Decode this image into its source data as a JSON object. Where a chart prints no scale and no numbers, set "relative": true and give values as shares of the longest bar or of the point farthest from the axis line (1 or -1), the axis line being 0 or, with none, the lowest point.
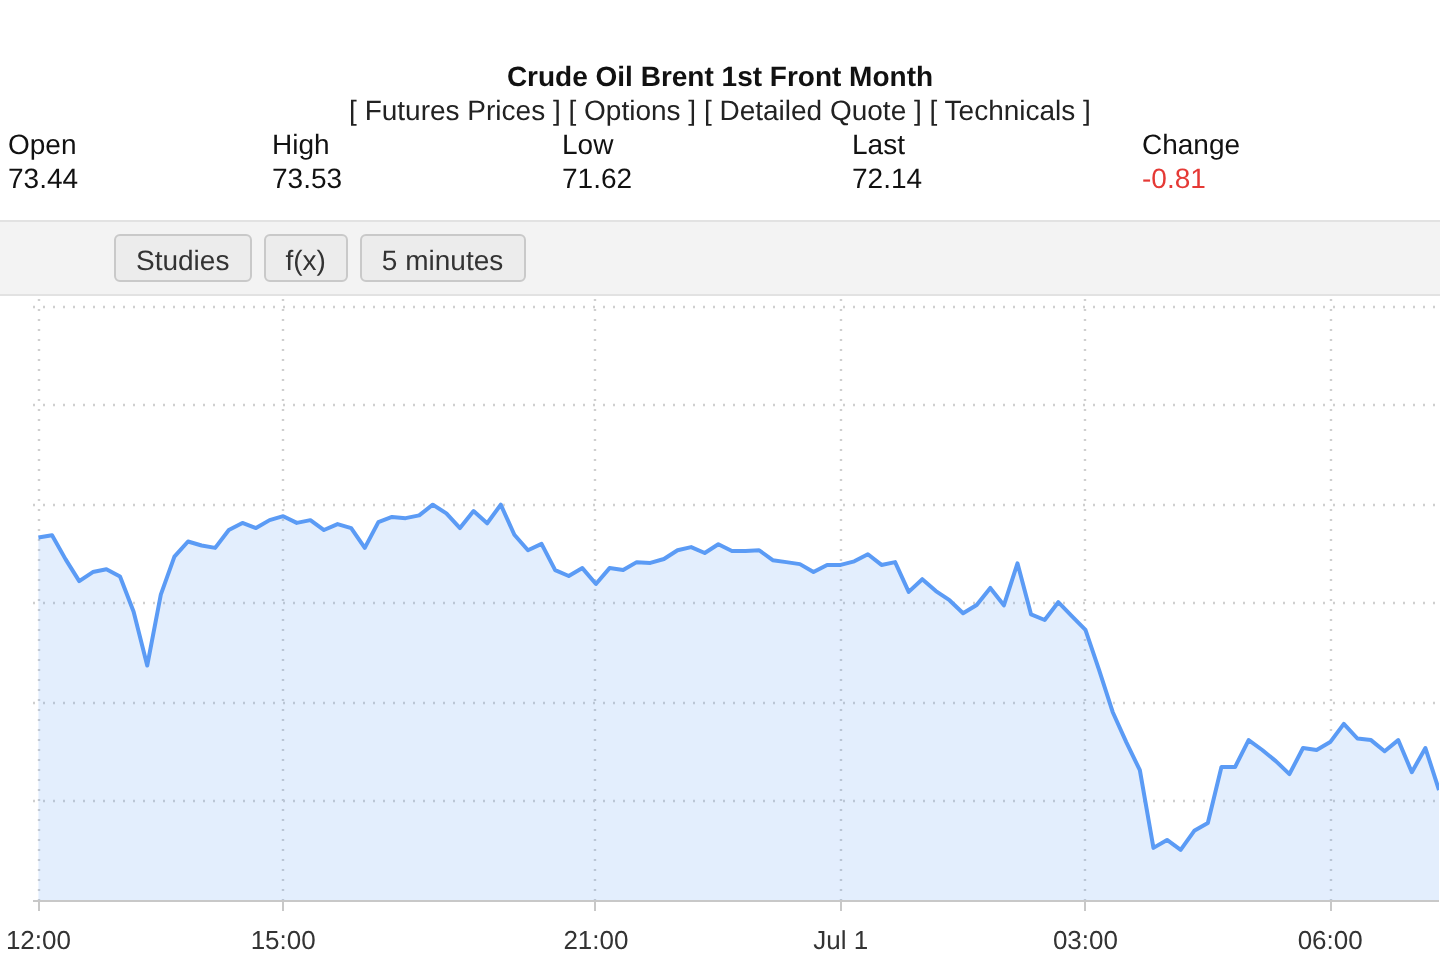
{
  "chart_data": {
    "type": "area",
    "title": "Crude Oil Brent 1st Front Month",
    "subtitle": "[ Futures Prices ] [ Options ] [ Detailed Quote ] [ Technicals ]",
    "annotations": [
      "Open",
      "73.44",
      "High",
      "73.53",
      "Low",
      "71.62",
      "Last",
      "72.14",
      "Change",
      "-0.81",
      "Studies",
      "f(x)",
      "5 minutes"
    ],
    "categories": [
      "12:00",
      null,
      null,
      null,
      null,
      null,
      null,
      null,
      null,
      null,
      null,
      null,
      null,
      null,
      null,
      null,
      null,
      null,
      "15:00",
      null,
      null,
      null,
      null,
      null,
      null,
      null,
      null,
      null,
      null,
      null,
      null,
      null,
      null,
      null,
      null,
      null,
      null,
      null,
      null,
      null,
      null,
      "21:00",
      null,
      null,
      null,
      null,
      null,
      null,
      null,
      null,
      null,
      null,
      null,
      null,
      null,
      null,
      null,
      null,
      null,
      "Jul 1",
      null,
      null,
      null,
      null,
      null,
      null,
      null,
      null,
      null,
      null,
      null,
      null,
      null,
      null,
      null,
      null,
      null,
      "03:00",
      null,
      null,
      null,
      null,
      null,
      null,
      null,
      null,
      null,
      null,
      null,
      null,
      null,
      null,
      null,
      null,
      null,
      "06:00",
      null,
      null,
      null,
      null,
      null,
      null,
      null,
      null
    ],
    "values": [
      0.917,
      0.923,
      0.862,
      0.807,
      0.83,
      0.837,
      0.819,
      0.73,
      0.594,
      0.773,
      0.869,
      0.907,
      0.897,
      0.891,
      0.936,
      0.954,
      0.941,
      0.961,
      0.971,
      0.954,
      0.961,
      0.936,
      0.951,
      0.941,
      0.891,
      0.956,
      0.969,
      0.966,
      0.973,
      1.0,
      0.978,
      0.941,
      0.984,
      0.953,
      1.0,
      0.924,
      0.885,
      0.901,
      0.835,
      0.82,
      0.84,
      0.8,
      0.84,
      0.835,
      0.855,
      0.853,
      0.863,
      0.885,
      0.893,
      0.878,
      0.9,
      0.883,
      0.883,
      0.885,
      0.86,
      0.855,
      0.85,
      0.83,
      0.848,
      0.848,
      0.857,
      0.875,
      0.848,
      0.855,
      0.78,
      0.812,
      0.782,
      0.759,
      0.726,
      0.747,
      0.79,
      0.746,
      0.852,
      0.723,
      0.709,
      0.754,
      0.719,
      0.684,
      0.583,
      0.477,
      0.401,
      0.33,
      0.134,
      0.154,
      0.129,
      0.177,
      0.197,
      0.338,
      0.338,
      0.406,
      0.381,
      0.353,
      0.32,
      0.386,
      0.381,
      0.401,
      0.447,
      0.41,
      0.406,
      0.378,
      0.406,
      0.325,
      0.386,
      0.28
    ],
    "color": "#5b9bf5",
    "relative": true,
    "grid": true
  }
}
